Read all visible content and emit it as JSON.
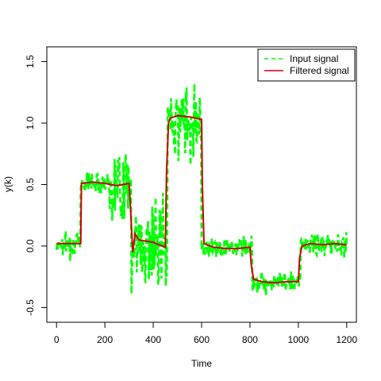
{
  "chart_data": {
    "type": "line",
    "title": "",
    "xlabel": "Time",
    "ylabel": "y(k)",
    "xlim": [
      -40,
      1240
    ],
    "ylim": [
      -0.62,
      1.62
    ],
    "x_ticks": [
      0,
      200,
      400,
      600,
      800,
      1000,
      1200
    ],
    "x_tick_labels": [
      "0",
      "200",
      "400",
      "600",
      "800",
      "1000",
      "1200"
    ],
    "y_ticks": [
      -0.5,
      0.0,
      0.5,
      1.0,
      1.5
    ],
    "y_tick_labels": [
      "-0.5",
      "0.0",
      "0.5",
      "1.0",
      "1.5"
    ],
    "grid": false,
    "legend": {
      "position": "top-right",
      "entries": [
        {
          "label": "Input signal",
          "color": "#00ff00",
          "style": "dashed"
        },
        {
          "label": "Filtered signal",
          "color": "#cc0000",
          "style": "solid"
        }
      ]
    },
    "series": [
      {
        "name": "Input signal",
        "color": "#00ff00",
        "style": "dashed",
        "segments": [
          {
            "x_start": 0,
            "x_end": 100,
            "level": 0.02,
            "spread": 0.1
          },
          {
            "x_start": 100,
            "x_end": 220,
            "level": 0.52,
            "spread": 0.08
          },
          {
            "x_start": 220,
            "x_end": 310,
            "level": 0.5,
            "spread": 0.3
          },
          {
            "x_start": 310,
            "x_end": 460,
            "level": 0.0,
            "spread": 0.35
          },
          {
            "x_start": 460,
            "x_end": 600,
            "level": 1.03,
            "spread": 0.25
          },
          {
            "x_start": 600,
            "x_end": 810,
            "level": -0.01,
            "spread": 0.08
          },
          {
            "x_start": 810,
            "x_end": 1010,
            "level": -0.29,
            "spread": 0.08
          },
          {
            "x_start": 1010,
            "x_end": 1200,
            "level": 0.01,
            "spread": 0.1
          }
        ]
      },
      {
        "name": "Filtered signal",
        "color": "#cc0000",
        "style": "solid",
        "x": [
          0,
          100,
          103,
          150,
          200,
          250,
          300,
          305,
          315,
          325,
          340,
          400,
          450,
          455,
          463,
          470,
          500,
          550,
          600,
          603,
          610,
          650,
          700,
          750,
          800,
          805,
          815,
          850,
          900,
          950,
          1000,
          1005,
          1015,
          1050,
          1100,
          1150,
          1200
        ],
        "y": [
          0.02,
          0.02,
          0.51,
          0.52,
          0.51,
          0.49,
          0.51,
          0.35,
          -0.05,
          0.1,
          0.05,
          0.03,
          -0.01,
          0.6,
          1.0,
          1.04,
          1.06,
          1.05,
          1.03,
          0.5,
          0.02,
          -0.01,
          -0.02,
          -0.02,
          -0.01,
          -0.15,
          -0.27,
          -0.29,
          -0.3,
          -0.29,
          -0.29,
          -0.1,
          0.0,
          0.02,
          0.01,
          0.02,
          0.01
        ]
      }
    ]
  }
}
